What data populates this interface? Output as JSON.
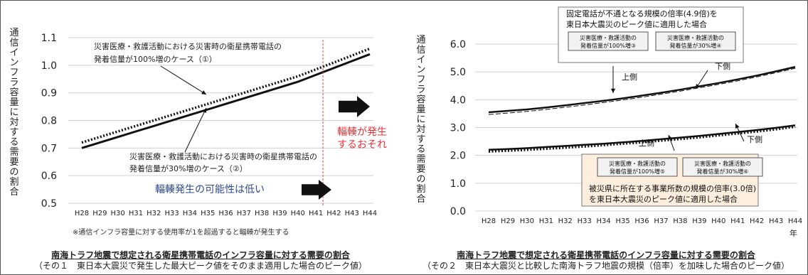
{
  "chart_data": [
    {
      "type": "line",
      "ylabel": "通信インフラ容量に対する需要の割合",
      "xlabel": "",
      "categories": [
        "H28",
        "H29",
        "H30",
        "H31",
        "H32",
        "H33",
        "H34",
        "H35",
        "H36",
        "H37",
        "H38",
        "H39",
        "H40",
        "H41",
        "H42",
        "H43",
        "H44"
      ],
      "yticks": [
        "0.5",
        "0.6",
        "0.7",
        "0.8",
        "0.9",
        "1.0",
        "1.1"
      ],
      "ylim": [
        0.5,
        1.1
      ],
      "grid": true,
      "series": [
        {
          "name": "災害医療・救護活動における災害時の衛星携帯電話の発着信量が100%増のケース（①）",
          "style": "dotted",
          "values": [
            0.72,
            0.74,
            0.76,
            0.78,
            0.8,
            0.82,
            0.84,
            0.86,
            0.88,
            0.9,
            0.92,
            0.94,
            0.96,
            0.985,
            1.01,
            1.035,
            1.06
          ]
        },
        {
          "name": "災害医療・救護活動における災害時の衛星携帯電話の発着信量が30%増のケース（②）",
          "style": "solid",
          "values": [
            0.7,
            0.72,
            0.74,
            0.76,
            0.78,
            0.8,
            0.82,
            0.84,
            0.86,
            0.88,
            0.9,
            0.92,
            0.94,
            0.965,
            0.99,
            1.015,
            1.04
          ]
        }
      ],
      "annotations": {
        "congestion": "輻輳が発生するおそれ",
        "low": "輻輳発生の可能性は低い"
      },
      "footnote": "※通信インフラ容量に対する使用率が1を超過すると輻輳が発生する",
      "title": "南海トラフ地震で想定される衛星携帯電話のインフラ容量に対する需要の割合",
      "subtitle": "（その１　東日本大震災で発生した最大ピーク値をそのまま適用した場合のピーク値）"
    },
    {
      "type": "line",
      "ylabel": "通信インフラ容量に対する需要の割合",
      "xlabel": "年",
      "categories": [
        "H28",
        "H29",
        "H30",
        "H31",
        "H32",
        "H33",
        "H34",
        "H35",
        "H36",
        "H37",
        "H38",
        "H39",
        "H40",
        "H41",
        "H42",
        "H43",
        "H44"
      ],
      "yticks": [
        "0.0",
        "1.0",
        "2.0",
        "3.0",
        "4.0",
        "5.0",
        "6.0"
      ],
      "ylim": [
        0.0,
        6.0
      ],
      "grid": true,
      "series": [
        {
          "name": "災害医療・救護活動の発着信量が100%増③",
          "style": "solid",
          "values": [
            3.55,
            3.6,
            3.65,
            3.72,
            3.8,
            3.88,
            3.96,
            4.05,
            4.15,
            4.25,
            4.36,
            4.48,
            4.6,
            4.73,
            4.87,
            5.02,
            5.18
          ]
        },
        {
          "name": "災害医療・救護活動の発着信量が30%増④",
          "style": "dashed",
          "values": [
            3.47,
            3.52,
            3.58,
            3.65,
            3.73,
            3.81,
            3.9,
            3.99,
            4.09,
            4.2,
            4.31,
            4.43,
            4.55,
            4.68,
            4.82,
            4.97,
            5.13
          ]
        },
        {
          "name": "災害医療・救護活動の発着信量が100%増⑤",
          "style": "solid",
          "values": [
            2.2,
            2.23,
            2.26,
            2.3,
            2.34,
            2.38,
            2.42,
            2.47,
            2.52,
            2.58,
            2.64,
            2.7,
            2.77,
            2.84,
            2.91,
            2.99,
            3.08
          ]
        },
        {
          "name": "災害医療・救護活動の発着信量が30%増⑥",
          "style": "dotted",
          "values": [
            2.14,
            2.17,
            2.2,
            2.24,
            2.28,
            2.32,
            2.37,
            2.42,
            2.47,
            2.53,
            2.59,
            2.65,
            2.72,
            2.79,
            2.86,
            2.94,
            3.03
          ]
        }
      ],
      "annotations": {
        "topbox": [
          "固定電話が不通となる規模の倍率(4.9倍)を",
          "東日本大震災のピーク値に適用した場合"
        ],
        "bottombox": [
          "被災県に所在する事業所数の規模の倍率(3.0倍)",
          "を東日本大震災のピーク値に適用した場合"
        ],
        "legend": [
          [
            "災害医療・救護活動の",
            "発着信量が100%増③"
          ],
          [
            "災害医療・救護活動の",
            "発着信量が30%増④"
          ],
          [
            "災害医療・救護活動の",
            "発着信量が100%増⑤"
          ],
          [
            "災害医療・救護活動の",
            "発着信量が30%増⑥"
          ]
        ],
        "upper_upper": "上側",
        "upper_lower": "下側",
        "lower_upper": "上側",
        "lower_lower": "下側"
      },
      "title": "南海トラフ地震で想定される衛星携帯電話のインフラ容量に対する需要の割合",
      "subtitle": "（その２　東日本大震災と比較した南海トラフ地震の規模（倍率）を加味した場合のピーク値）"
    }
  ]
}
